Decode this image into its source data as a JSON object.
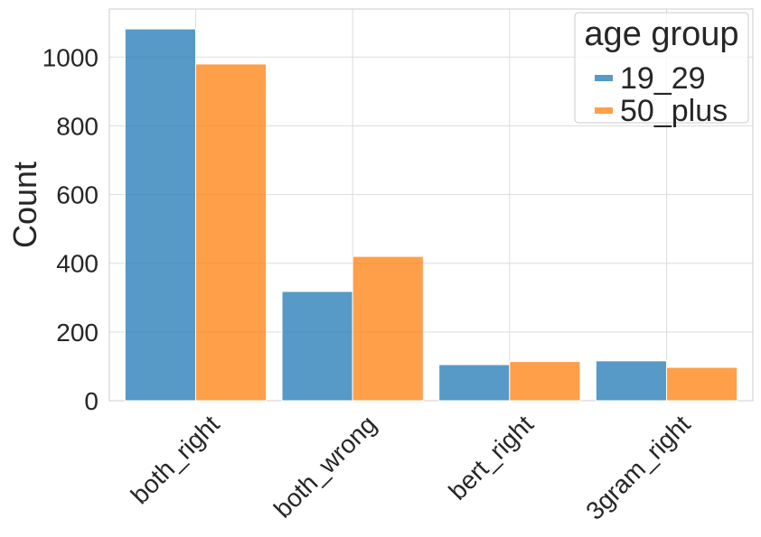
{
  "chart_data": {
    "type": "bar",
    "title": "",
    "xlabel": "",
    "ylabel": "Count",
    "categories": [
      "both_right",
      "both_wrong",
      "bert_right",
      "3gram_right"
    ],
    "series": [
      {
        "name": "19_29",
        "color": "#1f77b4",
        "values": [
          1082,
          318,
          105,
          116
        ]
      },
      {
        "name": "50_plus",
        "color": "#ff7f0e",
        "values": [
          980,
          420,
          114,
          97
        ]
      }
    ],
    "ylim": [
      0,
      1140
    ],
    "yticks": [
      0,
      200,
      400,
      600,
      800,
      1000
    ],
    "grid": true,
    "legend": {
      "title": "age group",
      "placement": "top-right"
    }
  }
}
